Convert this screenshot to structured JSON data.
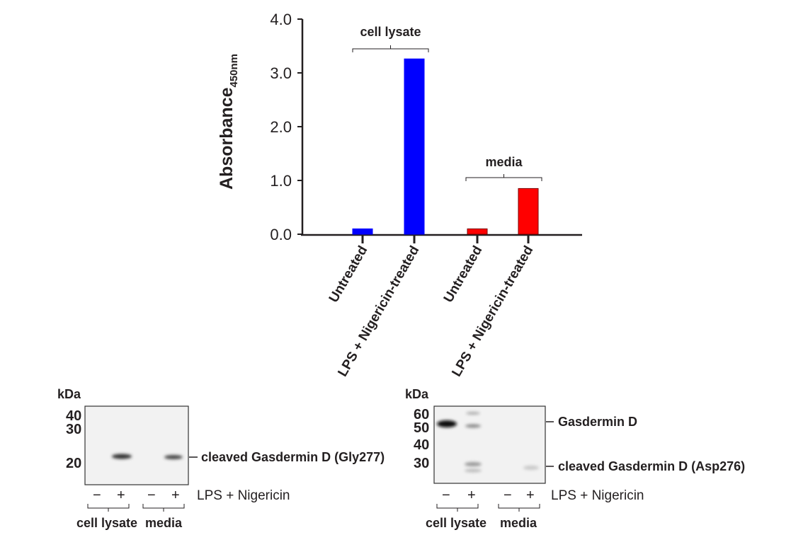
{
  "chart_data": {
    "type": "bar",
    "title": "",
    "xlabel": "",
    "ylabel": "Absorbance",
    "ylabel_subscript": "450nm",
    "ylim": [
      0,
      4.0
    ],
    "yticks": [
      "0.0",
      "1.0",
      "2.0",
      "3.0",
      "4.0"
    ],
    "ytick_values": [
      0,
      1,
      2,
      3,
      4
    ],
    "grid": false,
    "categories": [
      "Untreated",
      "LPS + Nigericin-treated",
      "Untreated",
      "LPS + Nigericin-treated"
    ],
    "values": [
      0.1,
      3.26,
      0.1,
      0.85
    ],
    "colors": [
      "#0000ff",
      "#0000ff",
      "#ff0000",
      "#ff0000"
    ],
    "groups": [
      {
        "label": "cell lysate",
        "members": [
          0,
          1
        ]
      },
      {
        "label": "media",
        "members": [
          2,
          3
        ]
      }
    ]
  },
  "blot_left": {
    "unit": "kDa",
    "markers": [
      "40",
      "30",
      "20"
    ],
    "band_label": "cleaved Gasdermin D (Gly277)",
    "lanes": [
      "−",
      "+",
      "−",
      "+"
    ],
    "treatment": "LPS + Nigericin",
    "groups": [
      "cell lysate",
      "media"
    ]
  },
  "blot_right": {
    "unit": "kDa",
    "markers": [
      "60",
      "50",
      "40",
      "30"
    ],
    "band_labels": [
      "Gasdermin D",
      "cleaved Gasdermin D (Asp276)"
    ],
    "lanes": [
      "−",
      "+",
      "−",
      "+"
    ],
    "treatment": "LPS + Nigericin",
    "groups": [
      "cell lysate",
      "media"
    ]
  }
}
